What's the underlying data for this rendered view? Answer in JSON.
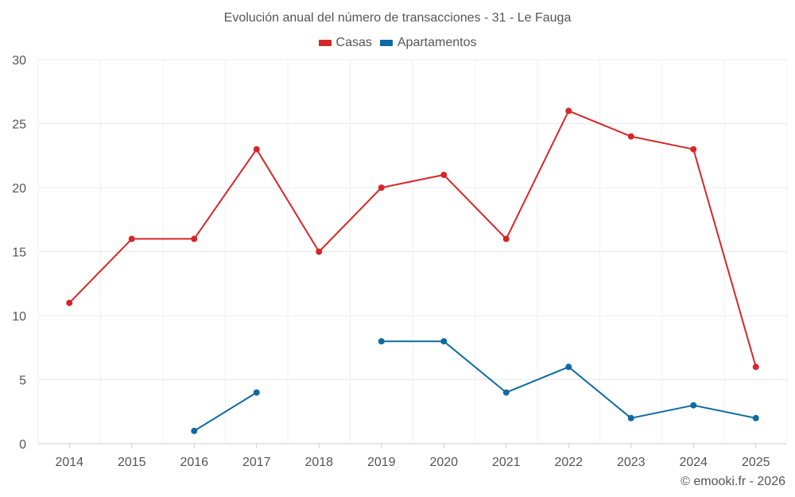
{
  "chart_data": {
    "type": "line",
    "title": "Evolución anual del número de transacciones - 31 - Le Fauga",
    "categories": [
      "2014",
      "2015",
      "2016",
      "2017",
      "2018",
      "2019",
      "2020",
      "2021",
      "2022",
      "2023",
      "2024",
      "2025"
    ],
    "ylim": [
      0,
      30
    ],
    "yticks": [
      0,
      5,
      10,
      15,
      20,
      25,
      30
    ],
    "grid": true,
    "legend_position": "top-center",
    "series": [
      {
        "name": "Casas",
        "color": "#d62728",
        "values": [
          11,
          16,
          16,
          23,
          15,
          20,
          21,
          16,
          26,
          24,
          23,
          6
        ]
      },
      {
        "name": "Apartamentos",
        "color": "#0e6aa0",
        "values": [
          null,
          null,
          1,
          4,
          null,
          8,
          8,
          4,
          6,
          2,
          3,
          2
        ]
      }
    ]
  },
  "credit": "© emooki.fr - 2026"
}
